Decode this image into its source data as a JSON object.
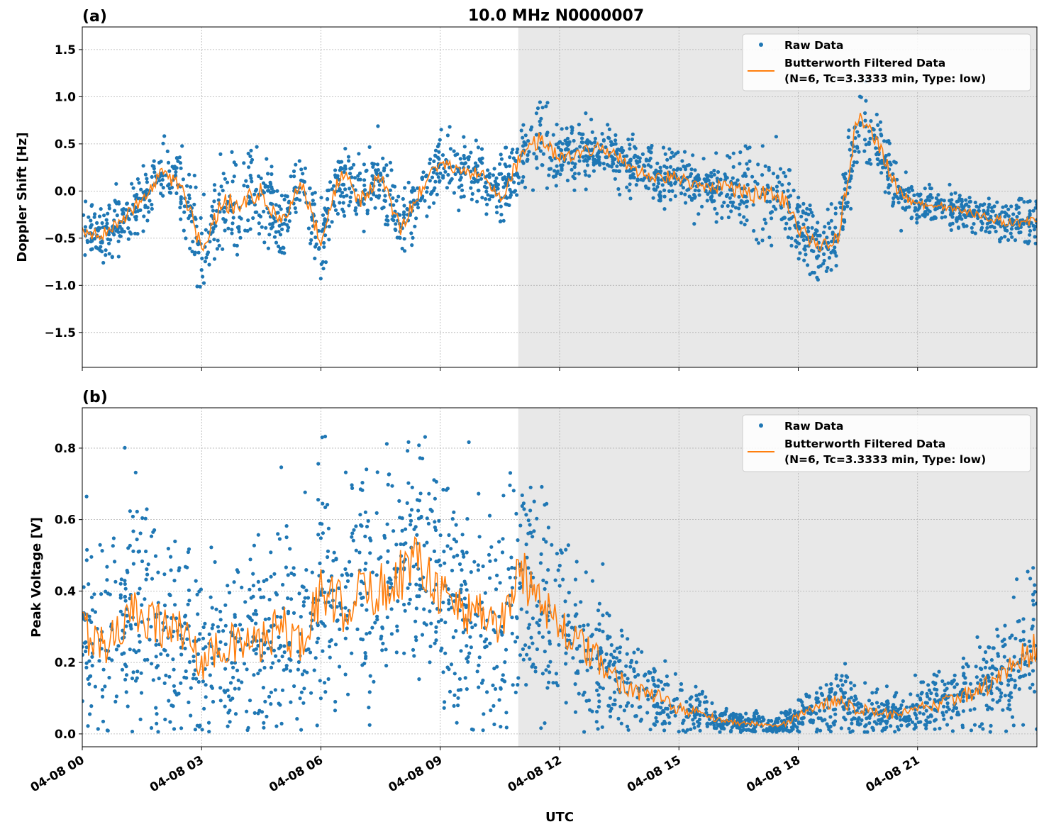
{
  "colors": {
    "raw": "#1f77b4",
    "filtered": "#ff7f0e",
    "shade": "#e8e8e8"
  },
  "chart_data": [
    {
      "type": "scatter",
      "panel_label": "(a)",
      "title": "10.0 MHz N0000007",
      "xlabel": "",
      "ylabel": "Doppler Shift [Hz]",
      "xlim_hours": [
        0,
        24
      ],
      "ylim": [
        -1.87,
        1.74
      ],
      "yticks": [
        -1.5,
        -1.0,
        -0.5,
        0.0,
        0.5,
        1.0,
        1.5
      ],
      "ytick_labels": [
        "−1.5",
        "−1.0",
        "−0.5",
        "0.0",
        "0.5",
        "1.0",
        "1.5"
      ],
      "grid": true,
      "shaded_region_hours": [
        10.96,
        24
      ],
      "legend": {
        "position": "top-right",
        "entries": [
          "Raw Data",
          "Butterworth Filtered Data",
          "(N=6, Tc=3.3333 min, Type: low)"
        ]
      },
      "x_hours_step": 0.5,
      "filtered": [
        -0.45,
        -0.45,
        -0.3,
        -0.1,
        0.2,
        0.05,
        -0.6,
        -0.1,
        -0.15,
        0.0,
        -0.35,
        0.1,
        -0.55,
        0.2,
        -0.1,
        0.15,
        -0.4,
        0.0,
        0.3,
        0.2,
        0.2,
        -0.1,
        0.35,
        0.55,
        0.35,
        0.4,
        0.45,
        0.35,
        0.2,
        0.15,
        0.15,
        0.05,
        0.05,
        0.0,
        -0.05,
        0.0,
        -0.4,
        -0.6,
        -0.5,
        0.8,
        0.5,
        0.0,
        -0.15,
        -0.15,
        -0.2,
        -0.25,
        -0.3,
        -0.35,
        -0.3
      ],
      "raw_spread": [
        0.15,
        0.15,
        0.15,
        0.15,
        0.15,
        0.2,
        0.25,
        0.25,
        0.3,
        0.2,
        0.2,
        0.15,
        0.2,
        0.2,
        0.2,
        0.2,
        0.2,
        0.15,
        0.15,
        0.15,
        0.15,
        0.2,
        0.2,
        0.2,
        0.15,
        0.15,
        0.15,
        0.15,
        0.15,
        0.15,
        0.15,
        0.15,
        0.15,
        0.2,
        0.25,
        0.25,
        0.2,
        0.2,
        0.15,
        0.25,
        0.2,
        0.15,
        0.1,
        0.1,
        0.1,
        0.1,
        0.12,
        0.12,
        0.12
      ]
    },
    {
      "type": "scatter",
      "panel_label": "(b)",
      "xlabel": "UTC",
      "ylabel": "Peak Voltage [V]",
      "xlim_hours": [
        0,
        24
      ],
      "ylim": [
        -0.036,
        0.913
      ],
      "yticks": [
        0.0,
        0.2,
        0.4,
        0.6,
        0.8
      ],
      "ytick_labels": [
        "0.0",
        "0.2",
        "0.4",
        "0.6",
        "0.8"
      ],
      "grid": true,
      "shaded_region_hours": [
        10.96,
        24
      ],
      "legend": {
        "position": "top-right",
        "entries": [
          "Raw Data",
          "Butterworth Filtered Data",
          "(N=6, Tc=3.3333 min, Type: low)"
        ]
      },
      "x_hours_step": 0.5,
      "filtered": [
        0.3,
        0.25,
        0.3,
        0.35,
        0.3,
        0.3,
        0.2,
        0.25,
        0.25,
        0.25,
        0.3,
        0.25,
        0.4,
        0.35,
        0.4,
        0.4,
        0.45,
        0.5,
        0.4,
        0.35,
        0.35,
        0.3,
        0.45,
        0.4,
        0.3,
        0.25,
        0.2,
        0.15,
        0.12,
        0.1,
        0.07,
        0.06,
        0.04,
        0.03,
        0.03,
        0.02,
        0.05,
        0.07,
        0.1,
        0.07,
        0.06,
        0.05,
        0.07,
        0.08,
        0.1,
        0.12,
        0.15,
        0.2,
        0.25
      ],
      "raw_spread": [
        0.15,
        0.15,
        0.15,
        0.17,
        0.15,
        0.15,
        0.12,
        0.13,
        0.13,
        0.13,
        0.15,
        0.13,
        0.17,
        0.17,
        0.17,
        0.18,
        0.18,
        0.18,
        0.17,
        0.17,
        0.17,
        0.15,
        0.17,
        0.17,
        0.13,
        0.12,
        0.1,
        0.08,
        0.06,
        0.05,
        0.04,
        0.03,
        0.02,
        0.015,
        0.015,
        0.015,
        0.03,
        0.04,
        0.05,
        0.04,
        0.035,
        0.03,
        0.035,
        0.04,
        0.05,
        0.06,
        0.07,
        0.09,
        0.11
      ]
    }
  ],
  "x_tick_hours": [
    0,
    3,
    6,
    9,
    12,
    15,
    18,
    21
  ],
  "x_tick_labels": [
    "04-08 00",
    "04-08 03",
    "04-08 06",
    "04-08 09",
    "04-08 12",
    "04-08 15",
    "04-08 18",
    "04-08 21"
  ]
}
